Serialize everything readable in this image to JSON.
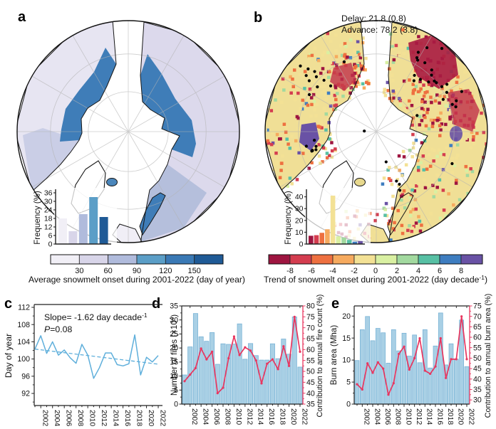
{
  "colors": {
    "blue_axis_label": "#4793c6",
    "crimson": "#e8365f",
    "bar_fill": "#a9d0e5",
    "bar_edge": "#79b3d6",
    "c_line": "#5fafdb",
    "graticule": "#b3b3b3",
    "coast": "#161616"
  },
  "panel_a": {
    "label": "a",
    "caption": "Average snowmelt onset during 2001-2022 (day of year)",
    "map_palette": {
      "ocean": "#ffffff",
      "land_pale": "#e7e5f2",
      "land_lavender": "#dcd9ec",
      "mid_lavender": "#aebad9",
      "arctic_blue": "#3f7db8",
      "iceland_blue": "#4a86bb",
      "greenland": "#ffffff"
    },
    "colorbar": {
      "colors": [
        "#f1eff6",
        "#d8d5e9",
        "#b0bbdc",
        "#5b9ec7",
        "#3a79b5",
        "#1f5a96"
      ],
      "tick_labels": [
        "30",
        "60",
        "90",
        "120",
        "150"
      ]
    },
    "histogram": {
      "ylabel": "Frequency (%)",
      "yticks": [
        0,
        6,
        12,
        18,
        24,
        30,
        36
      ],
      "ymax": 36.5,
      "values": [
        18,
        9,
        21,
        33,
        19
      ],
      "colors": [
        "#f1eff6",
        "#d8d5e9",
        "#b0bbdc",
        "#5b9ec7",
        "#1f5a96"
      ]
    }
  },
  "panel_b": {
    "label": "b",
    "delay_text": "Delay: 21.8 (0.8)",
    "advance_text": "Advance: 78.2 (3.8)",
    "caption_pre": "Trend of snowmelt onset during 2001-2022 (day decade",
    "caption_sup": "-1",
    "caption_post": ")",
    "map_palette": {
      "ocean": "#ffffff",
      "land_base": "#f0df96",
      "hot_dark_red": "#a81b41",
      "hot_red": "#c0304a",
      "purple": "#6952a5",
      "dot": "#000000"
    },
    "colorbar": {
      "colors": [
        "#9e1540",
        "#d43d4f",
        "#ee7040",
        "#f6aa5e",
        "#f3e195",
        "#d9f0a2",
        "#a2d99f",
        "#57c0a4",
        "#3e7dc0",
        "#6952a5"
      ],
      "tick_labels": [
        "-8",
        "-6",
        "-4",
        "-2",
        "0",
        "2",
        "4",
        "6",
        "8"
      ]
    },
    "histogram": {
      "ylabel": "Frequency (%)",
      "yticks": [
        0,
        10,
        20,
        30,
        40
      ],
      "ymax": 44,
      "values": [
        7,
        7.5,
        9.5,
        12.5,
        41,
        6.5,
        5.5,
        3.5,
        2,
        2.5
      ]
    }
  },
  "chart_data": [
    {
      "panel": "c",
      "type": "line",
      "ylabel": "Day of year",
      "x": [
        2001,
        2002,
        2003,
        2004,
        2005,
        2006,
        2007,
        2008,
        2009,
        2010,
        2011,
        2012,
        2013,
        2014,
        2015,
        2016,
        2017,
        2018,
        2019,
        2020,
        2021,
        2022
      ],
      "values": [
        102.3,
        105.4,
        101.3,
        104.0,
        100.9,
        102.1,
        100.3,
        99.0,
        103.4,
        100.9,
        95.5,
        98.0,
        101.4,
        101.4,
        98.7,
        98.4,
        98.9,
        105.6,
        96.3,
        100.4,
        99.3,
        100.8
      ],
      "trend_line": {
        "x0": 2001,
        "v0": 102.3,
        "x1": 2022,
        "v1": 98.8,
        "style": "dashed"
      },
      "annot": {
        "slope_pre": "Slope= -1.62 day decade",
        "slope_sup": "-1",
        "p_name": "P",
        "p_value": "=0.08"
      },
      "annotations": [
        "Slope= -1.62 day decade⁻¹",
        "P=0.08"
      ],
      "yticks": [
        92,
        96,
        100,
        104,
        108,
        112
      ],
      "ylim": [
        89.2,
        112.7
      ],
      "xtick_labels": [
        "2002",
        "2004",
        "2006",
        "2008",
        "2010",
        "2012",
        "2014",
        "2016",
        "2018",
        "2020",
        "2022"
      ]
    },
    {
      "panel": "d",
      "type": "bar+line",
      "categories": [
        2001,
        2002,
        2003,
        2004,
        2005,
        2006,
        2007,
        2008,
        2009,
        2010,
        2011,
        2012,
        2013,
        2014,
        2015,
        2016,
        2017,
        2018,
        2019,
        2020,
        2021,
        2022
      ],
      "series": [
        {
          "name": "Number of fires (×10⁴)",
          "type": "bar",
          "axis": "left",
          "values": [
            10.4,
            20.4,
            32.3,
            24.0,
            22.4,
            25.5,
            14.2,
            21.5,
            21.3,
            21.4,
            28.6,
            16.0,
            21.6,
            17.3,
            15.7,
            15.7,
            21.5,
            16.2,
            23.2,
            17.8,
            31.1,
            13.2
          ]
        },
        {
          "name": "Contribution to annual fire count (%)",
          "type": "line",
          "axis": "right",
          "values": [
            45.5,
            48.5,
            51.5,
            60.5,
            55.5,
            59.0,
            40.0,
            42.5,
            56.0,
            66.0,
            57.5,
            61.0,
            59.5,
            55.0,
            44.5,
            53.5,
            55.5,
            51.0,
            61.5,
            52.5,
            75.0,
            59.0
          ]
        }
      ],
      "left_ylabel_pre": "Number of fires (×10",
      "left_ylabel_sup": "4",
      "left_ylabel_post": ")",
      "right_ylabel": "Contribution to annual fire count (%)",
      "left_yticks": [
        0,
        5,
        10,
        15,
        20,
        25,
        30,
        35
      ],
      "left_ylim": [
        0,
        35
      ],
      "right_yticks": [
        35,
        40,
        45,
        50,
        55,
        60,
        65,
        70,
        75,
        80
      ],
      "right_ylim": [
        35,
        80
      ],
      "xtick_labels": [
        "2002",
        "2004",
        "2006",
        "2008",
        "2010",
        "2012",
        "2014",
        "2016",
        "2018",
        "2020",
        "2022"
      ]
    },
    {
      "panel": "e",
      "type": "bar+line",
      "categories": [
        2001,
        2002,
        2003,
        2004,
        2005,
        2006,
        2007,
        2008,
        2009,
        2010,
        2011,
        2012,
        2013,
        2014,
        2015,
        2016,
        2017,
        2018,
        2019,
        2020,
        2021,
        2022
      ],
      "series": [
        {
          "name": "Burn area (Mha)",
          "type": "bar",
          "axis": "left",
          "values": [
            9.9,
            16.9,
            19.9,
            14.4,
            17.2,
            16.2,
            9.3,
            16.9,
            12.1,
            16.1,
            10.9,
            15.7,
            9.4,
            16.9,
            8.2,
            13.2,
            20.7,
            8.9,
            13.7,
            10.2,
            19.1,
            8.5
          ]
        },
        {
          "name": "Contribution to annual burn area (%)",
          "type": "line",
          "axis": "right",
          "values": [
            37.5,
            35.0,
            47.5,
            43.0,
            48.0,
            45.0,
            32.5,
            38.0,
            52.0,
            55.5,
            44.5,
            50.0,
            59.5,
            44.0,
            42.5,
            46.0,
            59.5,
            40.5,
            49.5,
            49.5,
            70.0,
            49.5
          ]
        }
      ],
      "left_ylabel": "Burn area (Mha)",
      "right_ylabel": "Contribution to annual burn area (%)",
      "left_yticks": [
        0,
        5,
        10,
        15,
        20
      ],
      "left_ylim": [
        0,
        22.3
      ],
      "right_yticks": [
        30,
        35,
        40,
        45,
        50,
        55,
        60,
        65,
        70,
        75
      ],
      "right_ylim": [
        28,
        75
      ],
      "xtick_labels": [
        "2002",
        "2004",
        "2006",
        "2008",
        "2010",
        "2012",
        "2014",
        "2016",
        "2018",
        "2020",
        "2022"
      ]
    }
  ]
}
